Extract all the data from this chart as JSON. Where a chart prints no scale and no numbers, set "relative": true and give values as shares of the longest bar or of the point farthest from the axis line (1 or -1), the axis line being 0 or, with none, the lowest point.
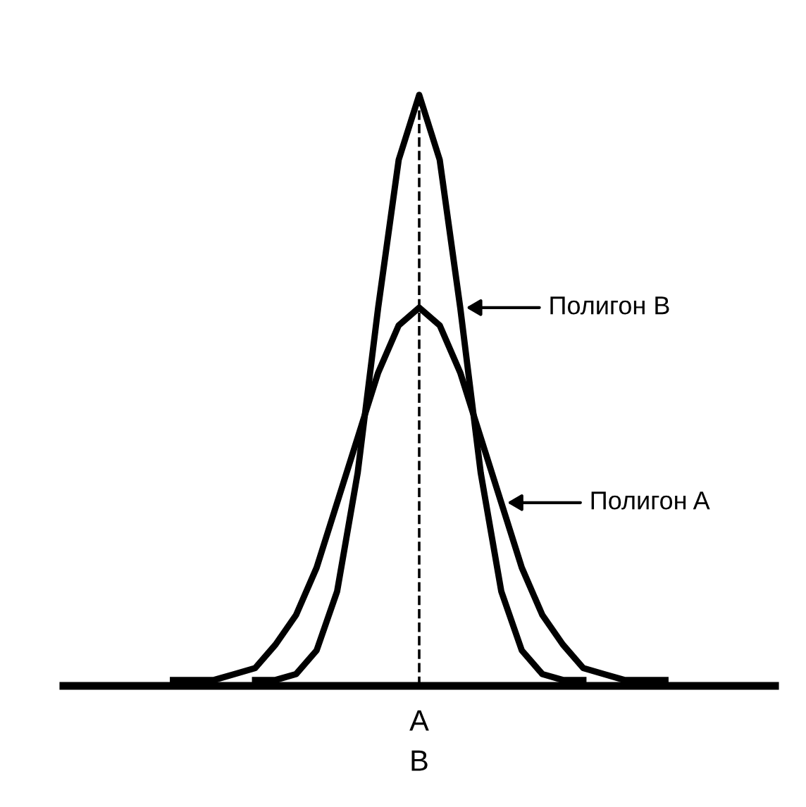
{
  "chart_data": {
    "type": "line",
    "relative": true,
    "categories": [
      null,
      null,
      null,
      null,
      null,
      null,
      null,
      null,
      null,
      null,
      null,
      null,
      null,
      null,
      null,
      null,
      null,
      null,
      null,
      null,
      null,
      null,
      null,
      null,
      null
    ],
    "series": [
      {
        "name": "Полигон B",
        "color": "#000000",
        "values": [
          null,
          null,
          null,
          null,
          0.01,
          0.01,
          0.02,
          0.06,
          0.16,
          0.36,
          0.64,
          0.89,
          1,
          0.89,
          0.64,
          0.36,
          0.16,
          0.06,
          0.02,
          0.01,
          0.01,
          null,
          null,
          null,
          null
        ]
      },
      {
        "name": "Полигон A",
        "color": "#000000",
        "values": [
          0.01,
          0.01,
          0.01,
          0.02,
          0.03,
          0.07,
          0.12,
          0.2,
          0.31,
          0.42,
          0.53,
          0.61,
          0.64,
          0.61,
          0.53,
          0.42,
          0.31,
          0.2,
          0.12,
          0.07,
          0.03,
          0.02,
          0.01,
          0.01,
          0.01
        ]
      }
    ],
    "ref_lines": [
      {
        "axis": "x",
        "label": "A\nB",
        "line_style": "dashed",
        "color": "#000000"
      }
    ],
    "marker": "none",
    "line_style": "solid",
    "legend": "right"
  }
}
